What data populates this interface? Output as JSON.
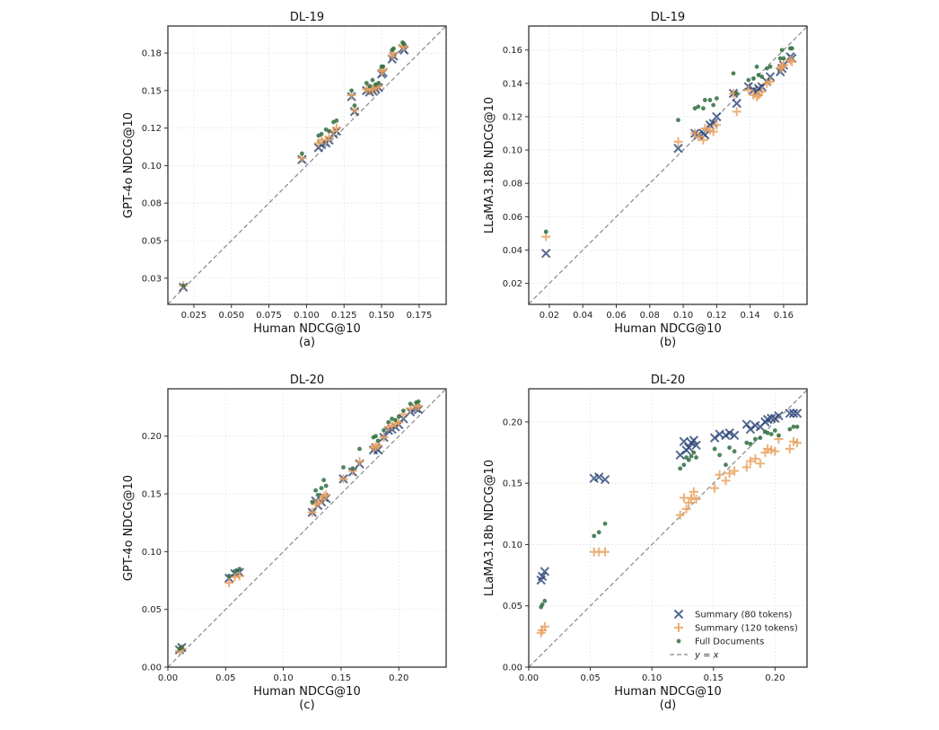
{
  "colors": {
    "summary80": "#2b4577",
    "summary120": "#e9a15f",
    "full": "#2f6f3f",
    "identity": "#888888"
  },
  "legend": {
    "placement": "lower-right",
    "items": [
      "Summary (80 tokens)",
      "Summary (120 tokens)",
      "Full Documents",
      "y = x"
    ]
  },
  "chart_data": [
    {
      "type": "scatter",
      "title": "DL-19",
      "subtitle": "(a)",
      "xlabel": "Human NDCG@10",
      "ylabel": "GPT-4o NDCG@10",
      "xlim": [
        0.0077,
        0.193
      ],
      "ylim": [
        0.0075,
        0.193
      ],
      "grid": true,
      "xticks": [
        {
          "v": 0.025,
          "l": "0.025"
        },
        {
          "v": 0.05,
          "l": "0.050"
        },
        {
          "v": 0.075,
          "l": "0.075"
        },
        {
          "v": 0.1,
          "l": "0.100"
        },
        {
          "v": 0.125,
          "l": "0.125"
        },
        {
          "v": 0.15,
          "l": "0.150"
        },
        {
          "v": 0.175,
          "l": "0.175"
        }
      ],
      "yticks": [
        {
          "v": 0.025,
          "l": "0.03"
        },
        {
          "v": 0.05,
          "l": "0.05"
        },
        {
          "v": 0.075,
          "l": "0.08"
        },
        {
          "v": 0.1,
          "l": "0.10"
        },
        {
          "v": 0.125,
          "l": "0.12"
        },
        {
          "v": 0.15,
          "l": "0.15"
        },
        {
          "v": 0.175,
          "l": "0.18"
        }
      ],
      "x": [
        0.018,
        0.097,
        0.108,
        0.11,
        0.113,
        0.115,
        0.118,
        0.12,
        0.13,
        0.132,
        0.14,
        0.142,
        0.144,
        0.146,
        0.148,
        0.15,
        0.151,
        0.157,
        0.158,
        0.164,
        0.165
      ],
      "series": [
        {
          "name": "Summary (80 tokens)",
          "marker": "x",
          "values": [
            0.019,
            0.104,
            0.112,
            0.114,
            0.115,
            0.117,
            0.121,
            0.123,
            0.146,
            0.136,
            0.15,
            0.149,
            0.15,
            0.151,
            0.152,
            0.161,
            0.162,
            0.171,
            0.173,
            0.178,
            0.177
          ]
        },
        {
          "name": "Summary (120 tokens)",
          "marker": "plus",
          "values": [
            0.02,
            0.105,
            0.115,
            0.117,
            0.117,
            0.119,
            0.123,
            0.125,
            0.147,
            0.137,
            0.151,
            0.15,
            0.151,
            0.152,
            0.153,
            0.163,
            0.164,
            0.173,
            0.175,
            0.18,
            0.179
          ]
        },
        {
          "name": "Full Documents",
          "marker": "dot",
          "values": [
            0.02,
            0.108,
            0.12,
            0.121,
            0.124,
            0.123,
            0.129,
            0.13,
            0.15,
            0.14,
            0.155,
            0.153,
            0.157,
            0.154,
            0.155,
            0.166,
            0.166,
            0.177,
            0.178,
            0.182,
            0.181
          ]
        }
      ]
    },
    {
      "type": "scatter",
      "title": "DL-19",
      "subtitle": "(b)",
      "xlabel": "Human NDCG@10",
      "ylabel": "LLaMA3.18b NDCG@10",
      "xlim": [
        0.0077,
        0.174
      ],
      "ylim": [
        0.0074,
        0.1744
      ],
      "grid": true,
      "xticks": [
        {
          "v": 0.02,
          "l": "0.02"
        },
        {
          "v": 0.04,
          "l": "0.04"
        },
        {
          "v": 0.06,
          "l": "0.06"
        },
        {
          "v": 0.08,
          "l": "0.08"
        },
        {
          "v": 0.1,
          "l": "0.10"
        },
        {
          "v": 0.12,
          "l": "0.12"
        },
        {
          "v": 0.14,
          "l": "0.14"
        },
        {
          "v": 0.16,
          "l": "0.16"
        }
      ],
      "yticks": [
        {
          "v": 0.02,
          "l": "0.02"
        },
        {
          "v": 0.04,
          "l": "0.04"
        },
        {
          "v": 0.06,
          "l": "0.06"
        },
        {
          "v": 0.08,
          "l": "0.08"
        },
        {
          "v": 0.1,
          "l": "0.10"
        },
        {
          "v": 0.12,
          "l": "0.12"
        },
        {
          "v": 0.14,
          "l": "0.14"
        },
        {
          "v": 0.16,
          "l": "0.16"
        }
      ],
      "x": [
        0.018,
        0.097,
        0.107,
        0.109,
        0.112,
        0.113,
        0.116,
        0.118,
        0.12,
        0.13,
        0.132,
        0.139,
        0.142,
        0.144,
        0.145,
        0.147,
        0.15,
        0.152,
        0.158,
        0.159,
        0.16,
        0.164,
        0.165
      ],
      "series": [
        {
          "name": "Summary (80 tokens)",
          "marker": "x",
          "values": [
            0.038,
            0.101,
            0.11,
            0.109,
            0.11,
            0.109,
            0.115,
            0.116,
            0.12,
            0.134,
            0.128,
            0.138,
            0.136,
            0.135,
            0.137,
            0.138,
            0.141,
            0.144,
            0.147,
            0.149,
            0.151,
            0.156,
            0.155
          ]
        },
        {
          "name": "Summary (120 tokens)",
          "marker": "plus",
          "values": [
            0.048,
            0.105,
            0.11,
            0.108,
            0.106,
            0.113,
            0.112,
            0.111,
            0.115,
            0.134,
            0.123,
            0.136,
            0.133,
            0.132,
            0.133,
            0.135,
            0.14,
            0.141,
            0.149,
            0.15,
            0.151,
            0.154,
            0.153
          ]
        },
        {
          "name": "Full Documents",
          "marker": "dot",
          "values": [
            0.051,
            0.118,
            0.125,
            0.126,
            0.125,
            0.13,
            0.13,
            0.127,
            0.131,
            0.146,
            0.134,
            0.142,
            0.143,
            0.15,
            0.145,
            0.144,
            0.149,
            0.15,
            0.155,
            0.16,
            0.155,
            0.161,
            0.161
          ]
        }
      ]
    },
    {
      "type": "scatter",
      "title": "DL-20",
      "subtitle": "(c)",
      "xlabel": "Human NDCG@10",
      "ylabel": "GPT-4o NDCG@10",
      "xlim": [
        0,
        0.241
      ],
      "ylim": [
        0,
        0.241
      ],
      "grid": true,
      "xticks": [
        {
          "v": 0,
          "l": "0.00"
        },
        {
          "v": 0.05,
          "l": "0.05"
        },
        {
          "v": 0.1,
          "l": "0.10"
        },
        {
          "v": 0.15,
          "l": "0.15"
        },
        {
          "v": 0.2,
          "l": "0.20"
        }
      ],
      "yticks": [
        {
          "v": 0,
          "l": "0.00"
        },
        {
          "v": 0.05,
          "l": "0.05"
        },
        {
          "v": 0.1,
          "l": "0.10"
        },
        {
          "v": 0.15,
          "l": "0.15"
        },
        {
          "v": 0.2,
          "l": "0.20"
        }
      ],
      "x": [
        0.01,
        0.012,
        0.053,
        0.058,
        0.062,
        0.125,
        0.128,
        0.13,
        0.133,
        0.135,
        0.137,
        0.152,
        0.16,
        0.166,
        0.178,
        0.18,
        0.182,
        0.187,
        0.191,
        0.194,
        0.197,
        0.2,
        0.204,
        0.21,
        0.215,
        0.217
      ],
      "series": [
        {
          "name": "Summary (80 tokens)",
          "marker": "x",
          "values": [
            0.015,
            0.017,
            0.077,
            0.081,
            0.082,
            0.134,
            0.144,
            0.14,
            0.143,
            0.147,
            0.146,
            0.163,
            0.169,
            0.176,
            0.188,
            0.19,
            0.188,
            0.199,
            0.205,
            0.206,
            0.208,
            0.21,
            0.215,
            0.221,
            0.224,
            0.223
          ]
        },
        {
          "name": "Summary (120 tokens)",
          "marker": "plus",
          "values": [
            0.014,
            0.016,
            0.073,
            0.078,
            0.079,
            0.134,
            0.141,
            0.142,
            0.145,
            0.148,
            0.149,
            0.163,
            0.17,
            0.178,
            0.19,
            0.191,
            0.192,
            0.199,
            0.208,
            0.209,
            0.211,
            0.212,
            0.219,
            0.224,
            0.226,
            0.226
          ]
        },
        {
          "name": "Full Documents",
          "marker": "dot",
          "values": [
            0.016,
            0.017,
            0.079,
            0.083,
            0.085,
            0.143,
            0.153,
            0.149,
            0.155,
            0.162,
            0.157,
            0.173,
            0.172,
            0.189,
            0.199,
            0.2,
            0.196,
            0.205,
            0.212,
            0.215,
            0.214,
            0.217,
            0.222,
            0.228,
            0.229,
            0.23
          ]
        }
      ]
    },
    {
      "type": "scatter",
      "title": "DL-20",
      "subtitle": "(d)",
      "xlabel": "Human NDCG@10",
      "ylabel": "LLaMA3.18b NDCG@10",
      "xlim": [
        0,
        0.226
      ],
      "ylim": [
        0,
        0.227
      ],
      "grid": true,
      "legend": true,
      "xticks": [
        {
          "v": 0,
          "l": "0.00"
        },
        {
          "v": 0.05,
          "l": "0.05"
        },
        {
          "v": 0.1,
          "l": "0.10"
        },
        {
          "v": 0.15,
          "l": "0.15"
        },
        {
          "v": 0.2,
          "l": "0.20"
        }
      ],
      "yticks": [
        {
          "v": 0,
          "l": "0.00"
        },
        {
          "v": 0.05,
          "l": "0.05"
        },
        {
          "v": 0.1,
          "l": "0.10"
        },
        {
          "v": 0.15,
          "l": "0.15"
        },
        {
          "v": 0.2,
          "l": "0.20"
        }
      ],
      "x": [
        0.01,
        0.011,
        0.013,
        0.053,
        0.057,
        0.062,
        0.123,
        0.126,
        0.128,
        0.13,
        0.132,
        0.134,
        0.136,
        0.151,
        0.155,
        0.16,
        0.163,
        0.167,
        0.177,
        0.18,
        0.184,
        0.188,
        0.192,
        0.194,
        0.197,
        0.2,
        0.203,
        0.212,
        0.215,
        0.218
      ],
      "series": [
        {
          "name": "Summary (80 tokens)",
          "marker": "x",
          "values": [
            0.071,
            0.074,
            0.078,
            0.154,
            0.155,
            0.153,
            0.173,
            0.184,
            0.177,
            0.179,
            0.183,
            0.185,
            0.181,
            0.187,
            0.19,
            0.189,
            0.191,
            0.189,
            0.198,
            0.194,
            0.197,
            0.196,
            0.2,
            0.202,
            0.203,
            0.203,
            0.205,
            0.207,
            0.207,
            0.207
          ]
        },
        {
          "name": "Summary (120 tokens)",
          "marker": "plus",
          "values": [
            0.028,
            0.03,
            0.033,
            0.094,
            0.094,
            0.094,
            0.124,
            0.138,
            0.129,
            0.134,
            0.138,
            0.143,
            0.137,
            0.146,
            0.157,
            0.152,
            0.158,
            0.16,
            0.163,
            0.168,
            0.17,
            0.166,
            0.175,
            0.178,
            0.177,
            0.176,
            0.186,
            0.178,
            0.184,
            0.183
          ]
        },
        {
          "name": "Full Documents",
          "marker": "dot",
          "values": [
            0.049,
            0.051,
            0.054,
            0.107,
            0.11,
            0.117,
            0.162,
            0.165,
            0.171,
            0.169,
            0.172,
            0.175,
            0.171,
            0.178,
            0.173,
            0.165,
            0.179,
            0.176,
            0.183,
            0.182,
            0.186,
            0.187,
            0.192,
            0.191,
            0.19,
            0.193,
            0.189,
            0.194,
            0.196,
            0.196
          ]
        }
      ]
    }
  ]
}
